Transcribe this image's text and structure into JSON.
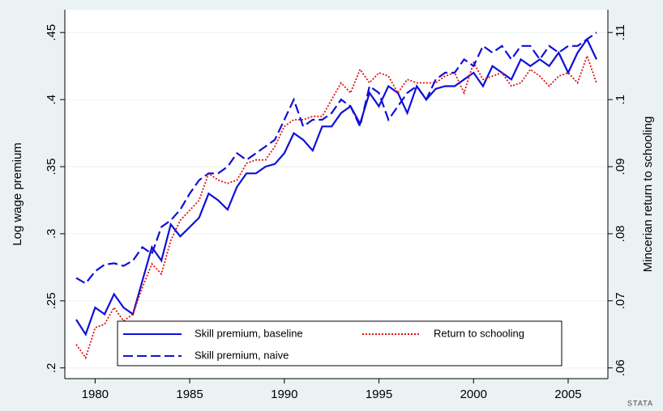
{
  "chart_data": {
    "type": "line",
    "y_label": "Log wage premium",
    "y2_label": "Mincerian return to schooling",
    "logo": "STATA",
    "x": [
      1979,
      1979.5,
      1980,
      1980.5,
      1981,
      1981.5,
      1982,
      1982.5,
      1983,
      1983.5,
      1984,
      1984.5,
      1985,
      1985.5,
      1986,
      1986.5,
      1987,
      1987.5,
      1988,
      1988.5,
      1989,
      1989.5,
      1990,
      1990.5,
      1991,
      1991.5,
      1992,
      1992.5,
      1993,
      1993.5,
      1994,
      1994.5,
      1995,
      1995.5,
      1996,
      1996.5,
      1997,
      1997.5,
      1998,
      1998.5,
      1999,
      1999.5,
      2000,
      2000.5,
      2001,
      2001.5,
      2002,
      2002.5,
      2003,
      2003.5,
      2004,
      2004.5,
      2005,
      2005.5,
      2006,
      2006.5
    ],
    "xlim": [
      1978.4,
      2007.1
    ],
    "xticks": [
      1980,
      1985,
      1990,
      1995,
      2000,
      2005
    ],
    "ylim": [
      0.192,
      0.467
    ],
    "yticks": [
      {
        "value": 0.2,
        "label": ".2"
      },
      {
        "value": 0.25,
        "label": ".25"
      },
      {
        "value": 0.3,
        "label": ".3"
      },
      {
        "value": 0.35,
        "label": ".35"
      },
      {
        "value": 0.4,
        "label": ".4"
      },
      {
        "value": 0.45,
        "label": ".45"
      }
    ],
    "y2lim": [
      0.0584,
      0.1134
    ],
    "y2ticks": [
      {
        "value": 0.06,
        "label": ".06"
      },
      {
        "value": 0.07,
        "label": ".07"
      },
      {
        "value": 0.08,
        "label": ".08"
      },
      {
        "value": 0.09,
        "label": ".09"
      },
      {
        "value": 0.1,
        "label": ".1"
      },
      {
        "value": 0.11,
        "label": ".11"
      }
    ],
    "grid": true,
    "series": [
      {
        "name": "Skill premium, baseline",
        "color": "#1010d8",
        "style": "solid",
        "values": [
          0.236,
          0.225,
          0.245,
          0.24,
          0.255,
          0.245,
          0.24,
          0.265,
          0.29,
          0.28,
          0.307,
          0.298,
          0.305,
          0.312,
          0.33,
          0.325,
          0.318,
          0.335,
          0.345,
          0.345,
          0.35,
          0.352,
          0.36,
          0.375,
          0.37,
          0.362,
          0.38,
          0.38,
          0.39,
          0.395,
          0.382,
          0.405,
          0.395,
          0.41,
          0.405,
          0.39,
          0.41,
          0.4,
          0.408,
          0.41,
          0.41,
          0.415,
          0.42,
          0.41,
          0.425,
          0.42,
          0.415,
          0.43,
          0.425,
          0.43,
          0.425,
          0.435,
          0.42,
          0.435,
          0.445,
          0.43
        ]
      },
      {
        "name": "Return to schooling",
        "color": "#e01010",
        "style": "dot",
        "axis": "y2",
        "values": [
          0.0635,
          0.0615,
          0.066,
          0.0665,
          0.069,
          0.067,
          0.068,
          0.072,
          0.0755,
          0.074,
          0.079,
          0.082,
          0.0835,
          0.085,
          0.089,
          0.088,
          0.0875,
          0.088,
          0.0905,
          0.091,
          0.091,
          0.093,
          0.096,
          0.097,
          0.097,
          0.0975,
          0.0975,
          0.1,
          0.1025,
          0.101,
          0.1045,
          0.1025,
          0.104,
          0.1035,
          0.101,
          0.103,
          0.1025,
          0.1025,
          0.1025,
          0.1035,
          0.104,
          0.101,
          0.1055,
          0.103,
          0.1035,
          0.104,
          0.102,
          0.1025,
          0.1045,
          0.1035,
          0.102,
          0.1035,
          0.104,
          0.1025,
          0.1065,
          0.1025
        ]
      },
      {
        "name": "Skill premium, naive",
        "color": "#1010d8",
        "style": "dash",
        "values": [
          0.267,
          0.263,
          0.272,
          0.277,
          0.278,
          0.276,
          0.28,
          0.29,
          0.285,
          0.305,
          0.31,
          0.318,
          0.33,
          0.34,
          0.345,
          0.345,
          0.35,
          0.36,
          0.355,
          0.36,
          0.365,
          0.37,
          0.385,
          0.4,
          0.38,
          0.385,
          0.385,
          0.39,
          0.4,
          0.395,
          0.38,
          0.41,
          0.405,
          0.385,
          0.395,
          0.405,
          0.41,
          0.4,
          0.415,
          0.42,
          0.42,
          0.43,
          0.425,
          0.44,
          0.435,
          0.44,
          0.43,
          0.44,
          0.44,
          0.43,
          0.44,
          0.435,
          0.44,
          0.44,
          0.445,
          0.45
        ]
      }
    ]
  }
}
